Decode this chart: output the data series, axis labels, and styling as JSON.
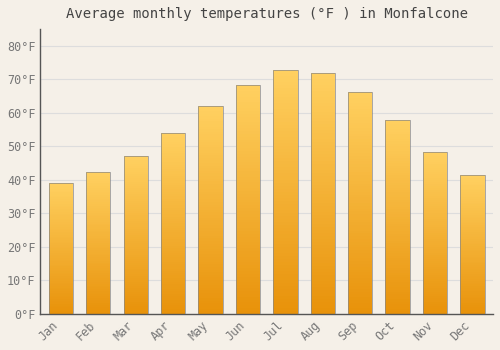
{
  "title": "Average monthly temperatures (°F ) in Monfalcone",
  "months": [
    "Jan",
    "Feb",
    "Mar",
    "Apr",
    "May",
    "Jun",
    "Jul",
    "Aug",
    "Sep",
    "Oct",
    "Nov",
    "Dec"
  ],
  "values": [
    39.2,
    42.3,
    47.1,
    54.0,
    62.1,
    68.2,
    72.9,
    71.8,
    66.2,
    58.0,
    48.4,
    41.5
  ],
  "bar_color_bottom": "#E8920A",
  "bar_color_top": "#FFD060",
  "yticks": [
    0,
    10,
    20,
    30,
    40,
    50,
    60,
    70,
    80
  ],
  "ytick_labels": [
    "0°F",
    "10°F",
    "20°F",
    "30°F",
    "40°F",
    "50°F",
    "60°F",
    "70°F",
    "80°F"
  ],
  "ylim": [
    0,
    85
  ],
  "background_color": "#F5F0E8",
  "grid_color": "#DDDDDD",
  "title_fontsize": 10,
  "tick_fontsize": 8.5,
  "bar_edge_color": "#888888",
  "bar_edge_width": 0.5
}
